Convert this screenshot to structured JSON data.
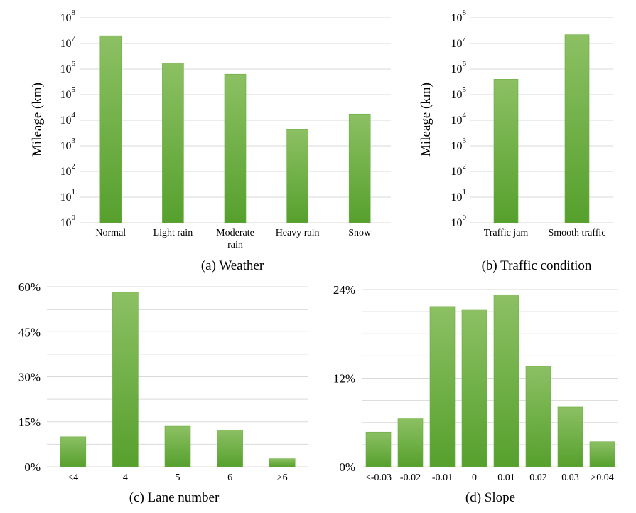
{
  "colors": {
    "bar_top": "#8cc063",
    "bar_bottom": "#56a02d",
    "grid": "#d9d9d9"
  },
  "chart_data": [
    {
      "panel": "a",
      "type": "bar",
      "caption": "(a) Weather",
      "ylabel": "Mileage (km)",
      "yscale": "log",
      "ylim": [
        1,
        100000000
      ],
      "ytick_exponents": [
        0,
        1,
        2,
        3,
        4,
        5,
        6,
        7,
        8
      ],
      "ytick_base": "10",
      "categories": [
        "Normal",
        "Light rain",
        "Moderate rain",
        "Heavy rain",
        "Snow"
      ],
      "category_lines": [
        [
          "Normal"
        ],
        [
          "Light rain"
        ],
        [
          "Moderate",
          "rain"
        ],
        [
          "Heavy rain"
        ],
        [
          "Snow"
        ]
      ],
      "values": [
        20000000,
        1700000,
        630000,
        4300,
        17500
      ],
      "grid": true
    },
    {
      "panel": "b",
      "type": "bar",
      "caption": "(b) Traffic condition",
      "ylabel": "Mileage (km)",
      "yscale": "log",
      "ylim": [
        1,
        100000000
      ],
      "ytick_exponents": [
        0,
        1,
        2,
        3,
        4,
        5,
        6,
        7,
        8
      ],
      "ytick_base": "10",
      "categories": [
        "Traffic jam",
        "Smooth traffic"
      ],
      "category_lines": [
        [
          "Traffic jam"
        ],
        [
          "Smooth traffic"
        ]
      ],
      "values": [
        400000,
        22000000
      ],
      "grid": true
    },
    {
      "panel": "c",
      "type": "bar",
      "caption": "(c) Lane number",
      "ylabel": "",
      "yscale": "linear",
      "ylim": [
        0,
        0.6
      ],
      "yticks": [
        0,
        0.15,
        0.3,
        0.45,
        0.6
      ],
      "ytick_labels": [
        "0%",
        "15%",
        "30%",
        "45%",
        "60%"
      ],
      "categories": [
        "<4",
        "4",
        "5",
        "6",
        ">6"
      ],
      "category_lines": [
        [
          "<4"
        ],
        [
          "4"
        ],
        [
          "5"
        ],
        [
          "6"
        ],
        [
          ">6"
        ]
      ],
      "values": [
        0.1,
        0.58,
        0.135,
        0.122,
        0.027
      ],
      "grid": true
    },
    {
      "panel": "d",
      "type": "bar",
      "caption": "(d) Slope",
      "ylabel": "",
      "yscale": "linear",
      "ylim": [
        0,
        0.24
      ],
      "yticks": [
        0,
        0.12,
        0.24
      ],
      "ytick_labels": [
        "0%",
        "12%",
        "24%"
      ],
      "categories": [
        "<-0.03",
        "-0.02",
        "-0.01",
        "0",
        "0.01",
        "0.02",
        "0.03",
        ">0.04"
      ],
      "category_lines": [
        [
          "<-0.03"
        ],
        [
          "-0.02"
        ],
        [
          "-0.01"
        ],
        [
          "0"
        ],
        [
          "0.01"
        ],
        [
          "0.02"
        ],
        [
          "0.03"
        ],
        [
          ">0.04"
        ]
      ],
      "values": [
        0.047,
        0.065,
        0.217,
        0.213,
        0.233,
        0.136,
        0.081,
        0.034
      ],
      "grid": true
    }
  ]
}
